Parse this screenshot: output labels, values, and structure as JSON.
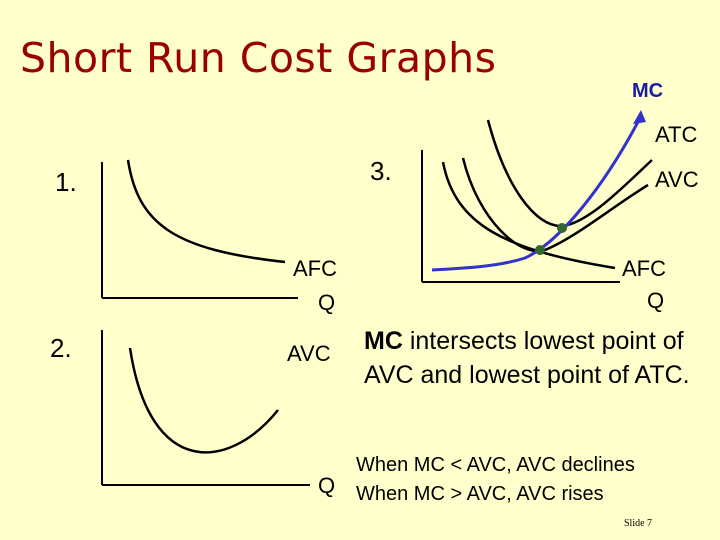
{
  "title": "Short Run Cost Graphs",
  "graph1": {
    "number": "1.",
    "curve_label": "AFC",
    "x_label": "Q"
  },
  "graph2": {
    "number": "2.",
    "curve_label": "AVC",
    "x_label": "Q"
  },
  "graph3": {
    "number": "3.",
    "labels": {
      "mc": "MC",
      "atc": "ATC",
      "avc": "AVC",
      "afc": "AFC",
      "x": "Q"
    }
  },
  "note": {
    "mc_word": "MC",
    "rest": " intersects lowest point of AVC and lowest point of ATC."
  },
  "rules": [
    "When MC < AVC, AVC declines",
    "When MC > AVC, AVC rises"
  ],
  "slide_number": "Slide 7",
  "colors": {
    "background": "#ffffcc",
    "title": "#990000",
    "mc_curve": "#3333cc",
    "mc_label": "#1a1aa6",
    "intersection_dot": "#336633"
  }
}
